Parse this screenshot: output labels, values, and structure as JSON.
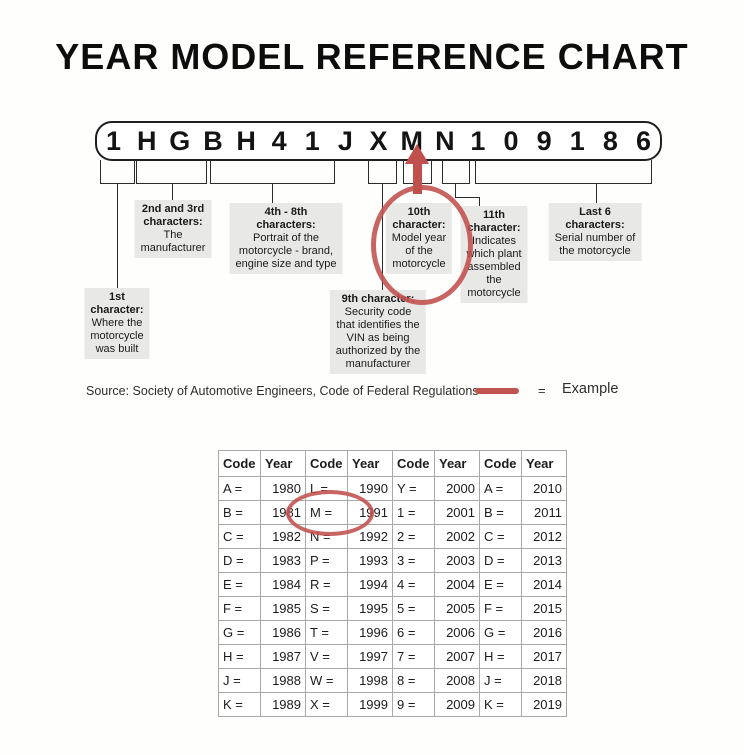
{
  "title": "YEAR MODEL REFERENCE CHART",
  "vin": {
    "characters": [
      "1",
      "H",
      "G",
      "B",
      "H",
      "4",
      "1",
      "J",
      "X",
      "M",
      "N",
      "1",
      "0",
      "9",
      "1",
      "8",
      "6"
    ]
  },
  "callouts": [
    {
      "name": "1st-character",
      "head": [
        "1st",
        "character:"
      ],
      "body": [
        "Where the",
        "motorcycle",
        "was built"
      ]
    },
    {
      "name": "2nd-3rd-characters",
      "head": [
        "2nd and 3rd",
        "characters:"
      ],
      "body": [
        "The",
        "manufacturer"
      ]
    },
    {
      "name": "4th-8th-characters",
      "head": [
        "4th - 8th",
        "characters:"
      ],
      "body": [
        "Portrait of the",
        "motorcycle - brand,",
        "engine size and type"
      ]
    },
    {
      "name": "9th-character",
      "head": [
        "9th character:"
      ],
      "body": [
        "Security code",
        "that identifies the",
        "VIN as being",
        "authorized by the",
        "manufacturer"
      ]
    },
    {
      "name": "10th-character",
      "head": [
        "10th",
        "character:"
      ],
      "body": [
        "Model year",
        "of the",
        "motorcycle"
      ]
    },
    {
      "name": "11th-character",
      "head": [
        "11th",
        "character:"
      ],
      "body": [
        "Indicates",
        "which plant",
        "assembled",
        "the",
        "motorcycle"
      ]
    },
    {
      "name": "last-6-characters",
      "head": [
        "Last 6",
        "characters:"
      ],
      "body": [
        "Serial number of",
        "the motorcycle"
      ]
    }
  ],
  "source_line": "Source:  Society of Automotive Engineers, Code of Federal Regulations",
  "legend": {
    "equals_sign": "=",
    "label": "Example"
  },
  "colors": {
    "example_red": "#c0504d",
    "callout_bg": "#e8e8e6",
    "line_black": "#2b2b2b"
  },
  "year_table": {
    "headers": [
      "Code",
      "Year",
      "Code",
      "Year",
      "Code",
      "Year",
      "Code",
      "Year"
    ],
    "rows": [
      [
        "A =",
        "1980",
        "L =",
        "1990",
        "Y =",
        "2000",
        "A =",
        "2010"
      ],
      [
        "B =",
        "1981",
        "M =",
        "1991",
        "1 =",
        "2001",
        "B =",
        "2011"
      ],
      [
        "C =",
        "1982",
        "N =",
        "1992",
        "2 =",
        "2002",
        "C =",
        "2012"
      ],
      [
        "D =",
        "1983",
        "P =",
        "1993",
        "3 =",
        "2003",
        "D =",
        "2013"
      ],
      [
        "E =",
        "1984",
        "R =",
        "1994",
        "4 =",
        "2004",
        "E =",
        "2014"
      ],
      [
        "F =",
        "1985",
        "S =",
        "1995",
        "5 =",
        "2005",
        "F =",
        "2015"
      ],
      [
        "G =",
        "1986",
        "T =",
        "1996",
        "6 =",
        "2006",
        "G =",
        "2016"
      ],
      [
        "H =",
        "1987",
        "V =",
        "1997",
        "7 =",
        "2007",
        "H =",
        "2017"
      ],
      [
        "J =",
        "1988",
        "W =",
        "1998",
        "8 =",
        "2008",
        "J =",
        "2018"
      ],
      [
        "K =",
        "1989",
        "X =",
        "1999",
        "9 =",
        "2009",
        "K =",
        "2019"
      ]
    ],
    "circled_value": "M = 1991"
  }
}
